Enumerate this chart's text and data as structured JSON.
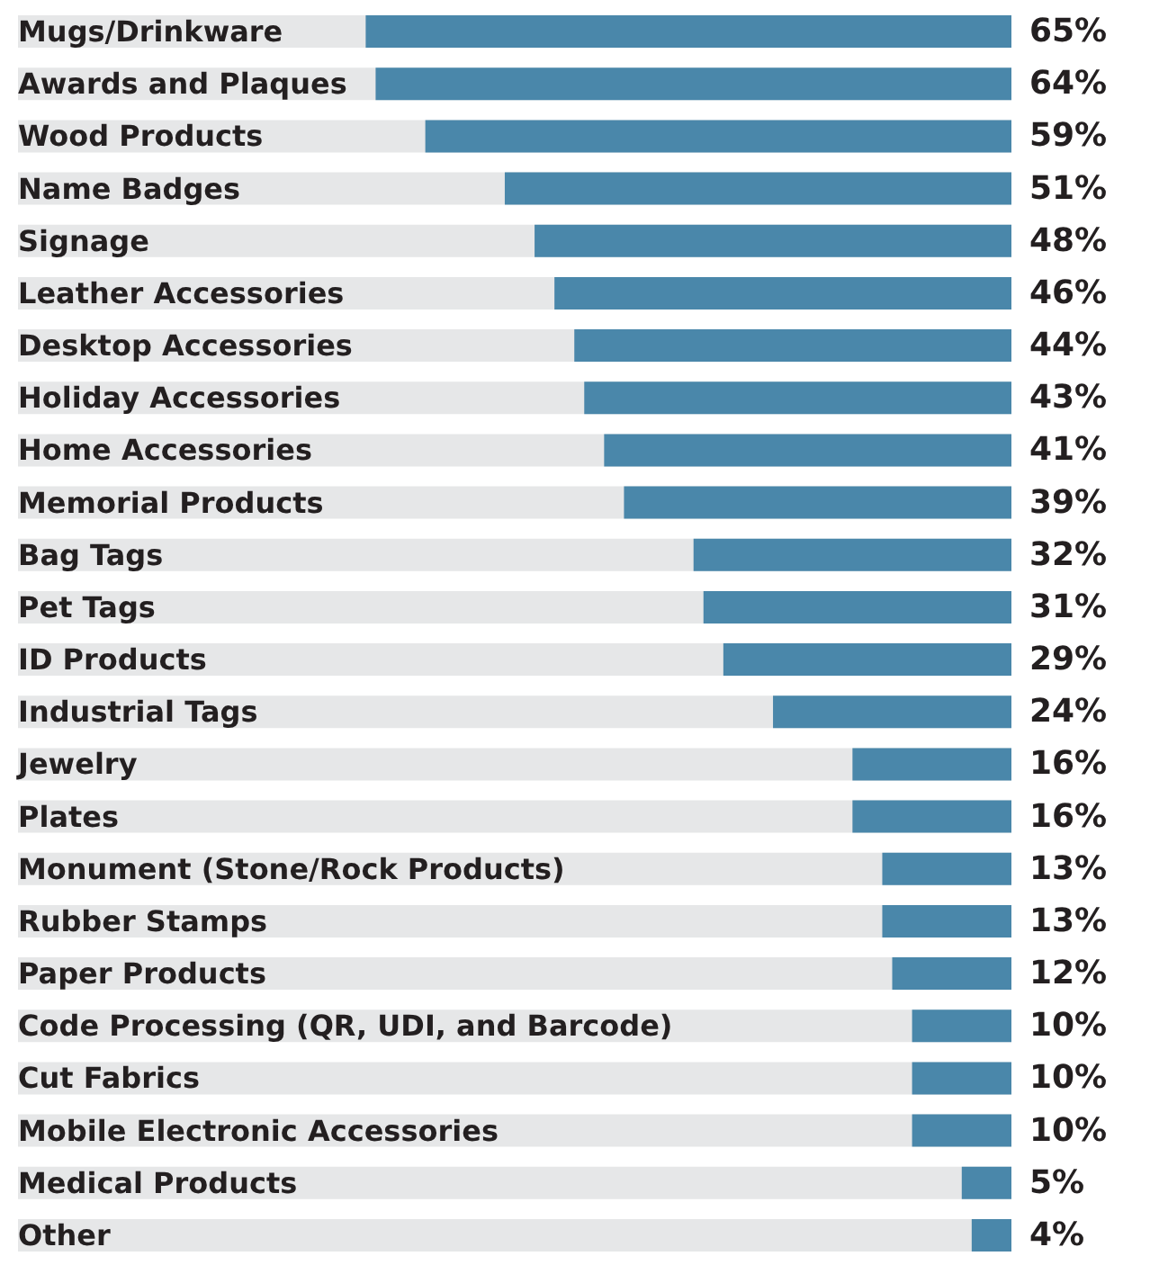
{
  "chart_data": {
    "type": "bar",
    "orientation": "horizontal",
    "categories": [
      "Mugs/Drinkware",
      "Awards and Plaques",
      "Wood Products",
      "Name Badges",
      "Signage",
      "Leather Accessories",
      "Desktop Accessories",
      "Holiday Accessories",
      "Home Accessories",
      "Memorial Products",
      "Bag Tags",
      "Pet Tags",
      "ID Products",
      "Industrial Tags",
      "Jewelry",
      "Plates",
      "Monument (Stone/Rock Products)",
      "Rubber Stamps",
      "Paper Products",
      "Code Processing (QR, UDI, and Barcode)",
      "Cut Fabrics",
      "Mobile Electronic Accessories",
      "Medical Products",
      "Other"
    ],
    "values": [
      65,
      64,
      59,
      51,
      48,
      46,
      44,
      43,
      41,
      39,
      32,
      31,
      29,
      24,
      16,
      16,
      13,
      13,
      12,
      10,
      10,
      10,
      5,
      4
    ],
    "value_labels": [
      "65%",
      "64%",
      "59%",
      "51%",
      "48%",
      "46%",
      "44%",
      "43%",
      "41%",
      "39%",
      "32%",
      "31%",
      "29%",
      "24%",
      "16%",
      "16%",
      "13%",
      "13%",
      "12%",
      "10%",
      "10%",
      "10%",
      "5%",
      "4%"
    ],
    "color": "#4a87aa",
    "xlim": [
      100,
      0
    ],
    "tick_labels": "y"
  }
}
